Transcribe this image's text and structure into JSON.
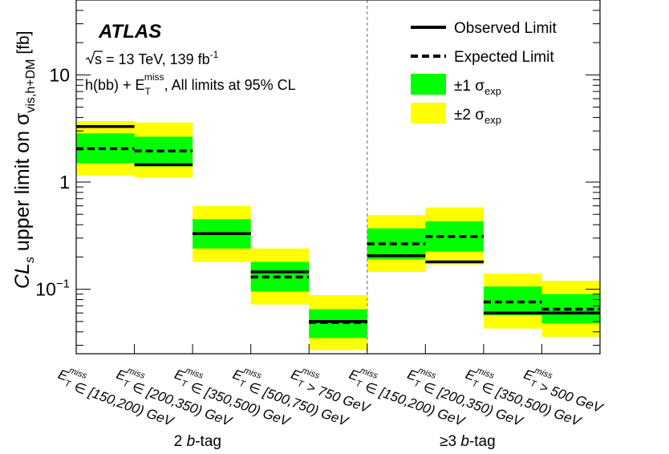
{
  "chart_data": {
    "type": "bar",
    "yscale": "log",
    "ylim": [
      0.025,
      50
    ],
    "ylabel_main": "upper limit on σ",
    "ylabel_prefix": "CL",
    "ylabel_prefix_sub": "s",
    "ylabel_sub": "vis,h+DM",
    "ylabel_unit": "[fb]",
    "yticks": [
      {
        "value": 10,
        "label": "10"
      },
      {
        "value": 1,
        "label": "1"
      },
      {
        "value": 0.1,
        "label": "10",
        "sup": "−1"
      }
    ],
    "experiment": "ATLAS",
    "energy_text": "s = 13 TeV, 139 fb",
    "lumi_sup": "-1",
    "selection": {
      "pre": "h(bb) + E",
      "sub": "T",
      "sup": "miss",
      "post": ", All limits at 95% CL"
    },
    "legend": [
      {
        "key": "observed",
        "label": "Observed Limit"
      },
      {
        "key": "expected",
        "label": "Expected Limit"
      },
      {
        "key": "band1",
        "pm": "±1 σ",
        "sub": "exp",
        "color": "#00ff00"
      },
      {
        "key": "band2",
        "pm": "±2 σ",
        "sub": "exp",
        "color": "#ffff00"
      }
    ],
    "category_ranges": [
      "∈ [150,200) GeV",
      "∈ [200,350) GeV",
      "∈ [350,500) GeV",
      "∈ [500,750) GeV",
      "> 750 GeV",
      "∈ [150,200) GeV",
      "∈ [200,350) GeV",
      "∈ [350,500) GeV",
      "> 500 GeV"
    ],
    "met_symbol": {
      "base": "E",
      "sub": "T",
      "sup": "miss"
    },
    "groups": [
      {
        "pre": "2 ",
        "tag": "b",
        "post": "-tag",
        "bins": [
          0,
          4
        ]
      },
      {
        "pre": "≥3 ",
        "tag": "b",
        "post": "-tag",
        "bins": [
          5,
          8
        ]
      }
    ],
    "series": [
      {
        "name": "Observed Limit",
        "values": [
          3.3,
          1.45,
          0.33,
          0.145,
          0.05,
          0.205,
          0.18,
          0.06,
          0.06
        ]
      },
      {
        "name": "Expected Limit",
        "values": [
          2.05,
          1.95,
          0.33,
          0.13,
          0.049,
          0.265,
          0.31,
          0.076,
          0.065
        ]
      }
    ],
    "band_1sigma": [
      [
        1.5,
        2.85
      ],
      [
        1.4,
        2.65
      ],
      [
        0.24,
        0.45
      ],
      [
        0.095,
        0.18
      ],
      [
        0.035,
        0.065
      ],
      [
        0.19,
        0.37
      ],
      [
        0.225,
        0.43
      ],
      [
        0.057,
        0.106
      ],
      [
        0.048,
        0.09
      ]
    ],
    "band_2sigma": [
      [
        1.15,
        3.7
      ],
      [
        1.1,
        3.6
      ],
      [
        0.18,
        0.6
      ],
      [
        0.072,
        0.24
      ],
      [
        0.027,
        0.088
      ],
      [
        0.145,
        0.49
      ],
      [
        0.17,
        0.58
      ],
      [
        0.043,
        0.14
      ],
      [
        0.036,
        0.12
      ]
    ],
    "colors": {
      "band1": "#00ff00",
      "band2": "#ffff00",
      "divider": "#999999"
    }
  }
}
